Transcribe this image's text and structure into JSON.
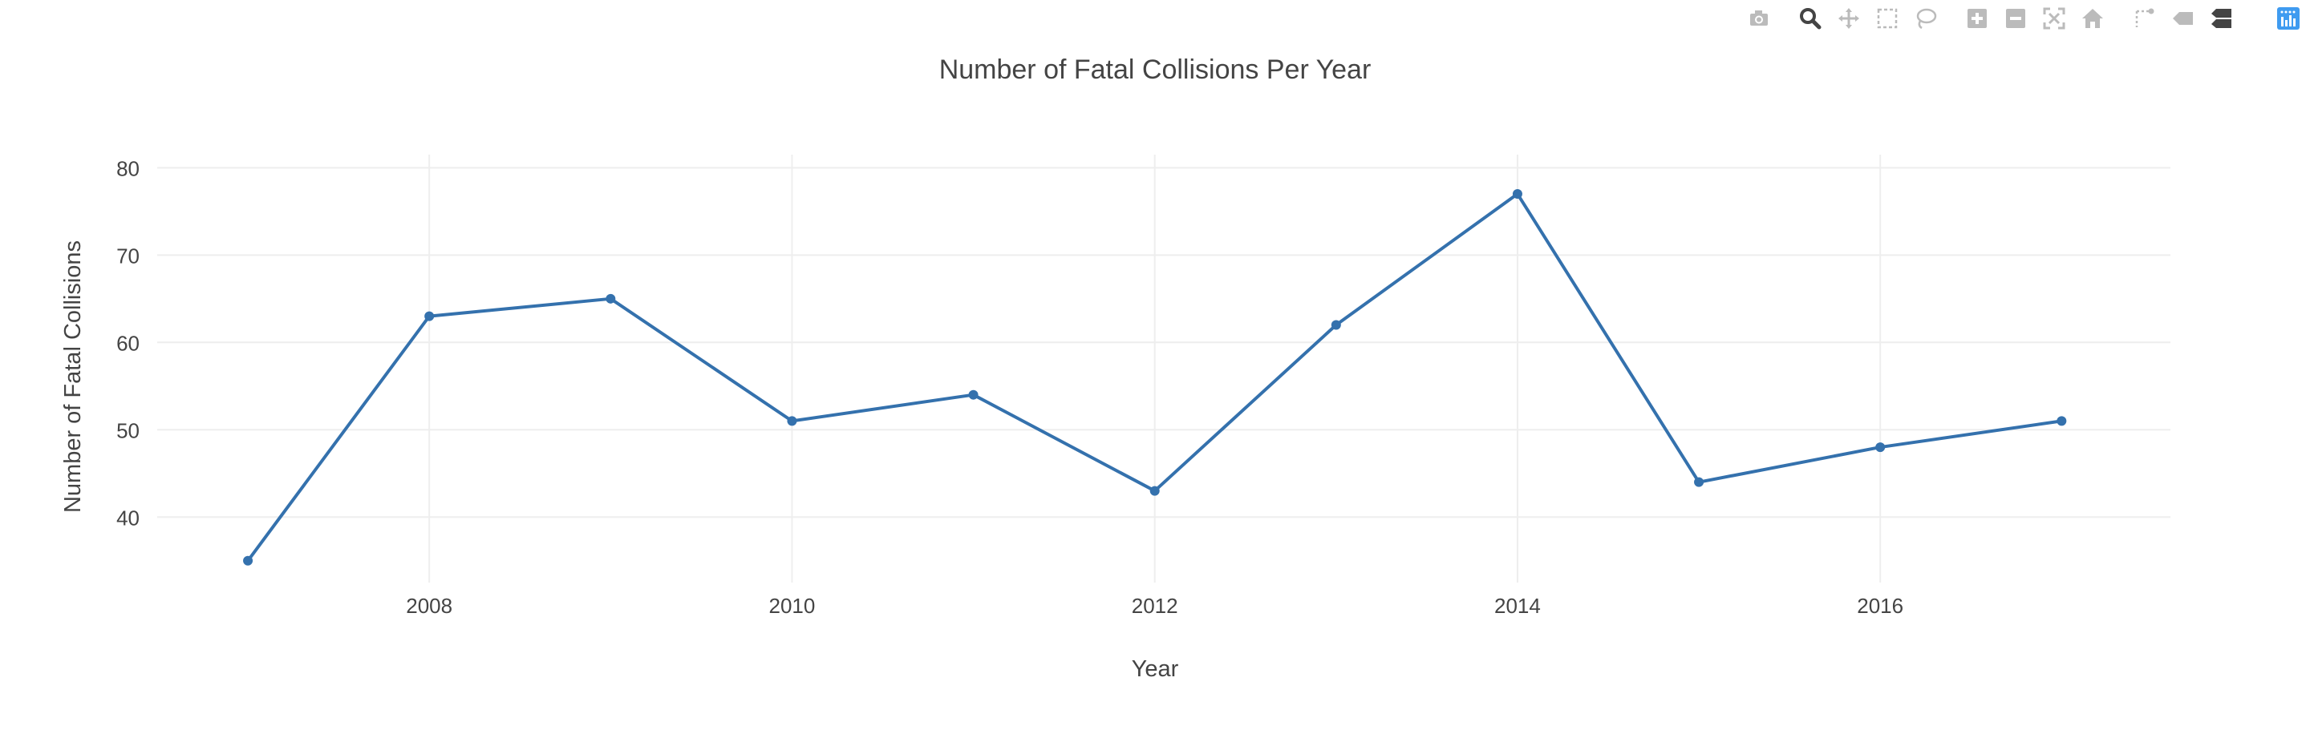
{
  "chart_data": {
    "type": "line",
    "title": "Number of Fatal Collisions Per Year",
    "xlabel": "Year",
    "ylabel": "Number of Fatal Collisions",
    "x": [
      2007,
      2008,
      2009,
      2010,
      2011,
      2012,
      2013,
      2014,
      2015,
      2016,
      2017
    ],
    "y": [
      35,
      63,
      65,
      51,
      54,
      43,
      62,
      77,
      44,
      48,
      51
    ],
    "xticks": [
      "2008",
      "2010",
      "2012",
      "2014",
      "2016"
    ],
    "yticks": [
      "40",
      "50",
      "60",
      "70",
      "80"
    ],
    "xlim": [
      2006.5,
      2017.6
    ],
    "ylim": [
      32.5,
      81.5
    ],
    "grid": true,
    "line_color": "#3471ad"
  },
  "modebar": {
    "icons": [
      "camera-icon",
      "zoom-icon",
      "pan-icon",
      "box-select-icon",
      "lasso-select-icon",
      "zoom-in-icon",
      "zoom-out-icon",
      "autoscale-icon",
      "reset-axes-icon",
      "spike-lines-icon",
      "hover-closest-icon",
      "hover-compare-icon",
      "plotly-logo-icon"
    ],
    "active_color": "#444444",
    "inactive_color": "#bbbbbb",
    "logo_color": "#3f9bf0"
  }
}
